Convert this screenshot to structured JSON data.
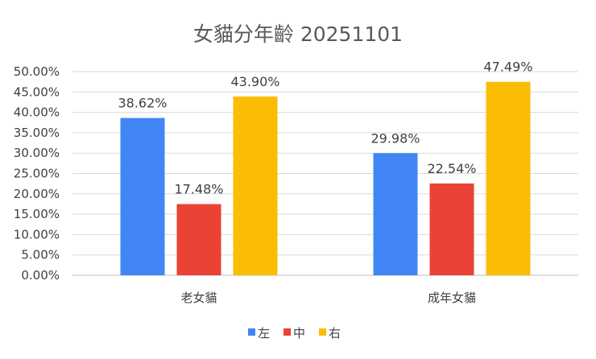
{
  "chart_data": {
    "type": "bar",
    "title": "女貓分年齡 20251101",
    "categories": [
      "老女貓",
      "成年女貓"
    ],
    "series": [
      {
        "name": "左",
        "values": [
          38.62,
          29.98
        ],
        "labels": [
          "38.62%",
          "29.98%"
        ],
        "color": "#4285f4"
      },
      {
        "name": "中",
        "values": [
          17.48,
          22.54
        ],
        "labels": [
          "17.48%",
          "22.54%"
        ],
        "color": "#ea4335"
      },
      {
        "name": "右",
        "values": [
          43.9,
          47.49
        ],
        "labels": [
          "43.90%",
          "47.49%"
        ],
        "color": "#fbbc04"
      }
    ],
    "ylim": [
      0,
      50
    ],
    "yticks": [
      "0.00%",
      "5.00%",
      "10.00%",
      "15.00%",
      "20.00%",
      "25.00%",
      "30.00%",
      "35.00%",
      "40.00%",
      "45.00%",
      "50.00%"
    ],
    "xlabel": "",
    "ylabel": "",
    "grid": true,
    "legend_position": "bottom"
  }
}
